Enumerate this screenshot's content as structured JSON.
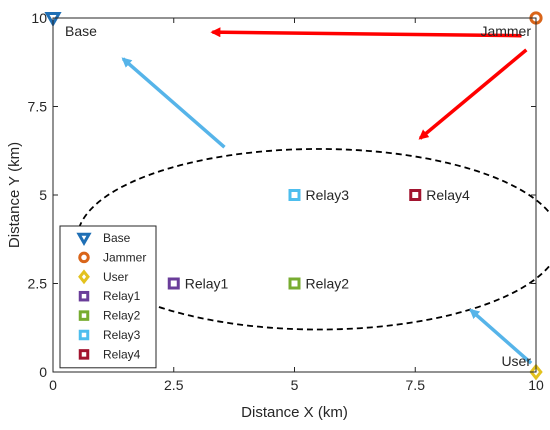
{
  "chart_data": {
    "type": "scatter",
    "xlabel": "Distance X (km)",
    "ylabel": "Distance Y (km)",
    "xlim": [
      0,
      10
    ],
    "ylim": [
      0,
      10
    ],
    "xticks": [
      "0",
      "2.5",
      "5",
      "7.5",
      "10"
    ],
    "yticks": [
      "0",
      "2.5",
      "5",
      "7.5",
      "10"
    ],
    "grid": false,
    "legend_position": "bottom-left",
    "series": [
      {
        "name": "Base",
        "marker": "triangle-down",
        "color": "#1f6fb5",
        "x": 0,
        "y": 10,
        "label": "Base"
      },
      {
        "name": "Jammer",
        "marker": "circle",
        "color": "#d9651a",
        "x": 10,
        "y": 10,
        "label": "Jammer"
      },
      {
        "name": "User",
        "marker": "diamond",
        "color": "#e3c21e",
        "x": 10,
        "y": 0,
        "label": "User"
      },
      {
        "name": "Relay1",
        "marker": "square",
        "color": "#6a3d9a",
        "x": 2.5,
        "y": 2.5,
        "label": "Relay1"
      },
      {
        "name": "Relay2",
        "marker": "square",
        "color": "#77ac30",
        "x": 5,
        "y": 2.5,
        "label": "Relay2"
      },
      {
        "name": "Relay3",
        "marker": "square",
        "color": "#4dbeee",
        "x": 5,
        "y": 5,
        "label": "Relay3"
      },
      {
        "name": "Relay4",
        "marker": "square",
        "color": "#a2142f",
        "x": 7.5,
        "y": 5,
        "label": "Relay4"
      }
    ],
    "ellipse": {
      "cx": 5.5,
      "cy": 3.75,
      "rx": 5.0,
      "ry": 2.55,
      "style": "dashed",
      "color": "#000000"
    },
    "arrows": [
      {
        "from": [
          9.7,
          9.5
        ],
        "to": [
          3.3,
          9.6
        ],
        "color": "#ff0000"
      },
      {
        "from": [
          9.8,
          9.1
        ],
        "to": [
          7.6,
          6.6
        ],
        "color": "#ff0000"
      },
      {
        "from": [
          3.55,
          6.35
        ],
        "to": [
          1.45,
          8.85
        ],
        "color": "#56b4e9"
      },
      {
        "from": [
          9.9,
          0.25
        ],
        "to": [
          8.65,
          1.75
        ],
        "color": "#56b4e9"
      }
    ]
  }
}
